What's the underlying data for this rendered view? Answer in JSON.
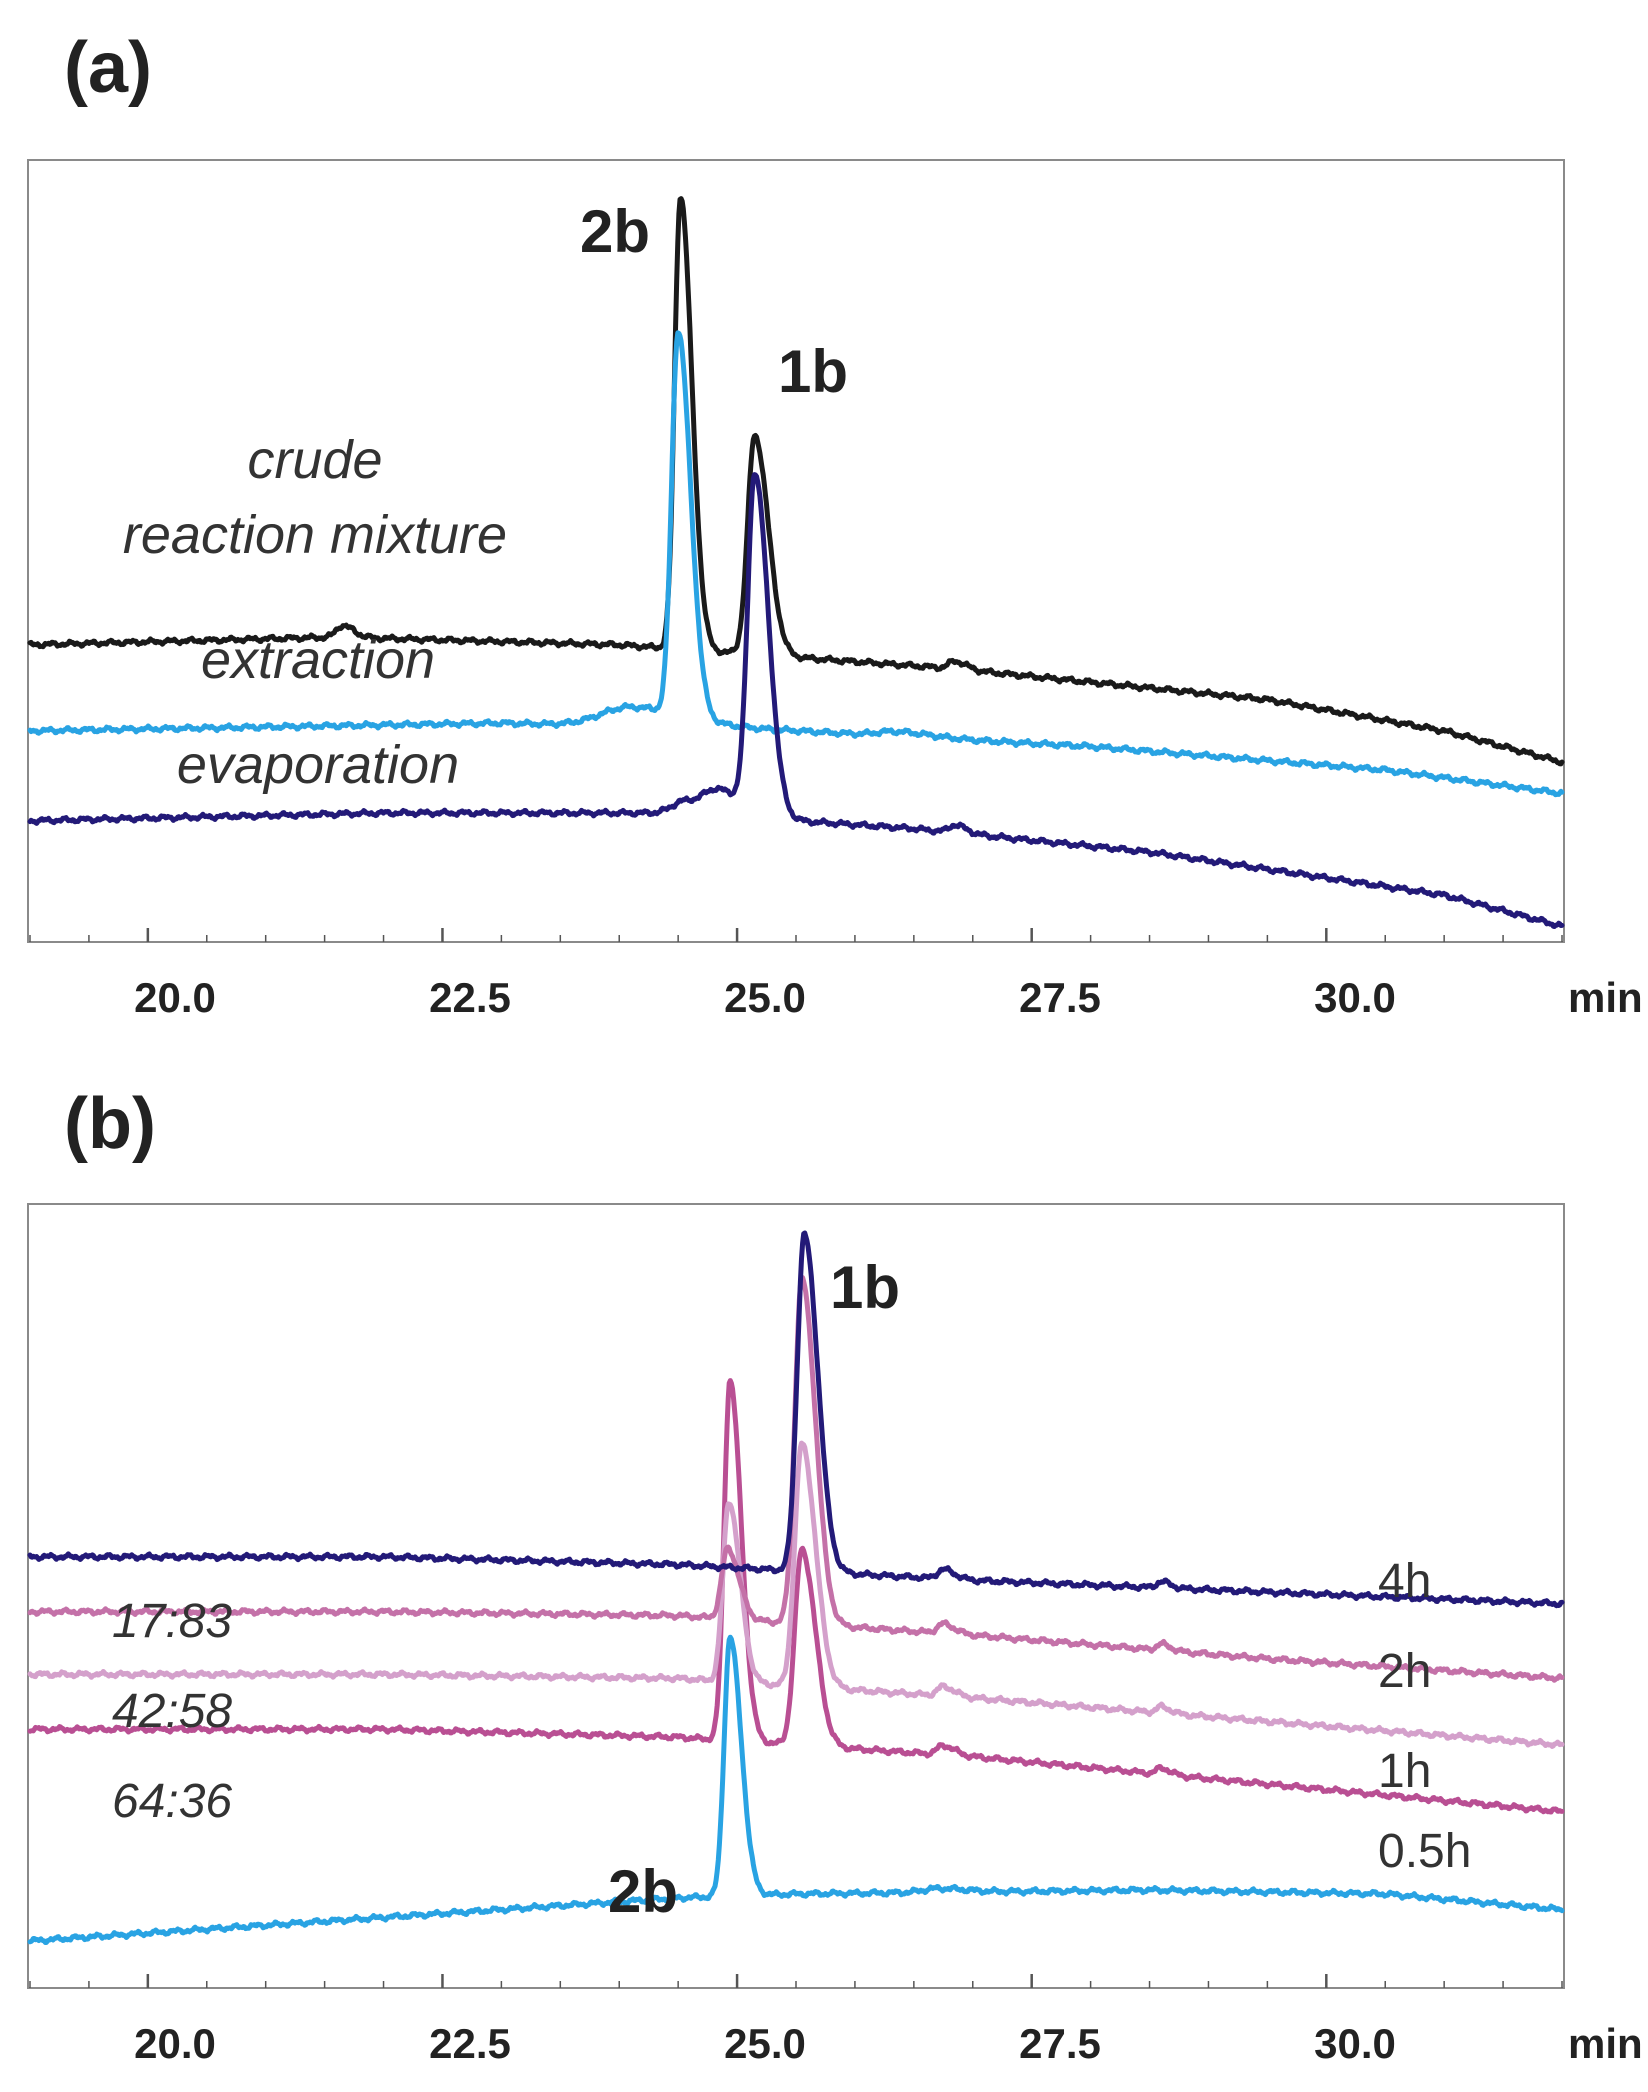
{
  "chart_data": [
    {
      "type": "line",
      "panel_label": "(a)",
      "xlabel": "min",
      "xlim": [
        19.0,
        32.0
      ],
      "x_ticks": [
        "20.0",
        "22.5",
        "25.0",
        "27.5",
        "30.0"
      ],
      "grid": false,
      "peak_labels": [
        {
          "text": "2b",
          "x": 24.5
        },
        {
          "text": "1b",
          "x": 25.1
        }
      ],
      "series": [
        {
          "name": "crude reaction mixture",
          "label_lines": [
            "crude",
            "reaction mixture"
          ],
          "color": "#1a1a1a",
          "baseline": [
            [
              19.0,
              38
            ],
            [
              21.6,
              39
            ],
            [
              24.0,
              38
            ],
            [
              26.8,
              35
            ],
            [
              29.5,
              31
            ],
            [
              31.0,
              27
            ],
            [
              32.0,
              23
            ]
          ],
          "peaks": [
            {
              "x": 24.52,
              "height": 58,
              "width": 0.05
            },
            {
              "x": 25.15,
              "height": 28,
              "width": 0.06
            },
            {
              "x": 21.65,
              "height": 1.5,
              "width": 0.05
            },
            {
              "x": 26.85,
              "height": 1.0,
              "width": 0.05
            }
          ]
        },
        {
          "name": "extraction",
          "label_lines": [
            "extraction"
          ],
          "color": "#29a3e3",
          "baseline": [
            [
              19.0,
              27
            ],
            [
              23.0,
              28
            ],
            [
              25.5,
              27
            ],
            [
              28.0,
              25
            ],
            [
              30.5,
              22
            ],
            [
              32.0,
              19
            ]
          ],
          "peaks": [
            {
              "x": 24.5,
              "height": 49,
              "width": 0.055
            },
            {
              "x": 24.1,
              "height": 2.5,
              "width": 0.25
            },
            {
              "x": 26.35,
              "height": 0.6,
              "width": 0.15
            }
          ]
        },
        {
          "name": "evaporation",
          "label_lines": [
            "evaporation"
          ],
          "color": "#231a78",
          "baseline": [
            [
              19.0,
              15.5
            ],
            [
              22.0,
              16.5
            ],
            [
              24.5,
              16.5
            ],
            [
              26.5,
              14.5
            ],
            [
              28.5,
              11.5
            ],
            [
              31.0,
              6
            ],
            [
              32.0,
              2
            ]
          ],
          "peaks": [
            {
              "x": 25.15,
              "height": 43,
              "width": 0.06
            },
            {
              "x": 24.85,
              "height": 3,
              "width": 0.12
            },
            {
              "x": 24.55,
              "height": 1.5,
              "width": 0.1
            },
            {
              "x": 26.85,
              "height": 1.0,
              "width": 0.05
            }
          ]
        }
      ]
    },
    {
      "type": "line",
      "panel_label": "(b)",
      "xlabel": "min",
      "xlim": [
        19.0,
        32.0
      ],
      "x_ticks": [
        "20.0",
        "22.5",
        "25.0",
        "27.5",
        "30.0"
      ],
      "grid": false,
      "peak_labels": [
        {
          "text": "1b",
          "x": 25.6
        },
        {
          "text": "2b",
          "x": 24.9
        }
      ],
      "series": [
        {
          "name": "4h",
          "time_label": "4h",
          "ratio_label": "",
          "color": "#231a78",
          "baseline": [
            [
              19.0,
              55
            ],
            [
              22.0,
              55
            ],
            [
              24.5,
              54
            ],
            [
              27.0,
              52
            ],
            [
              29.5,
              50.5
            ],
            [
              32.0,
              49
            ]
          ],
          "peaks": [
            {
              "x": 25.57,
              "height": 43,
              "width": 0.06
            },
            {
              "x": 26.75,
              "height": 1.2,
              "width": 0.05
            },
            {
              "x": 28.6,
              "height": 0.8,
              "width": 0.04
            }
          ]
        },
        {
          "name": "2h",
          "time_label": "2h",
          "ratio_label": "17:83",
          "color": "#c471a8",
          "baseline": [
            [
              19.0,
              48
            ],
            [
              22.0,
              48
            ],
            [
              24.5,
              47.5
            ],
            [
              27.0,
              45
            ],
            [
              29.5,
              42
            ],
            [
              32.0,
              39.5
            ]
          ],
          "peaks": [
            {
              "x": 24.92,
              "height": 9,
              "width": 0.05
            },
            {
              "x": 25.55,
              "height": 44,
              "width": 0.06
            },
            {
              "x": 26.75,
              "height": 1.2,
              "width": 0.05
            },
            {
              "x": 28.6,
              "height": 0.8,
              "width": 0.04
            }
          ]
        },
        {
          "name": "1h",
          "time_label": "1h",
          "ratio_label": "42:58",
          "color": "#d4a0cb",
          "baseline": [
            [
              19.0,
              40
            ],
            [
              22.0,
              40
            ],
            [
              24.5,
              39.5
            ],
            [
              27.0,
              37
            ],
            [
              29.5,
              34
            ],
            [
              32.0,
              31
            ]
          ],
          "peaks": [
            {
              "x": 24.93,
              "height": 23,
              "width": 0.05
            },
            {
              "x": 25.55,
              "height": 31,
              "width": 0.06
            },
            {
              "x": 26.75,
              "height": 1.2,
              "width": 0.05
            },
            {
              "x": 28.6,
              "height": 0.8,
              "width": 0.04
            }
          ]
        },
        {
          "name": "0.5h",
          "time_label": "0.5h",
          "ratio_label": "64:36",
          "color": "#b94f93",
          "baseline": [
            [
              19.0,
              33
            ],
            [
              22.0,
              33
            ],
            [
              24.5,
              32
            ],
            [
              27.0,
              29.5
            ],
            [
              29.5,
              26
            ],
            [
              32.0,
              22.5
            ]
          ],
          "peaks": [
            {
              "x": 24.94,
              "height": 46,
              "width": 0.05
            },
            {
              "x": 25.55,
              "height": 25,
              "width": 0.06
            },
            {
              "x": 26.75,
              "height": 1.2,
              "width": 0.05
            },
            {
              "x": 28.6,
              "height": 0.8,
              "width": 0.04
            }
          ]
        },
        {
          "name": "2b reference",
          "time_label": "",
          "ratio_label": "",
          "color": "#29a3e3",
          "baseline": [
            [
              19.0,
              6
            ],
            [
              22.0,
              9
            ],
            [
              24.5,
              11.5
            ],
            [
              25.5,
              12
            ],
            [
              28.5,
              12.5
            ],
            [
              30.5,
              12
            ],
            [
              32.0,
              10
            ]
          ],
          "peaks": [
            {
              "x": 24.94,
              "height": 33,
              "width": 0.05
            },
            {
              "x": 26.7,
              "height": 0.5,
              "width": 0.12
            }
          ]
        }
      ]
    }
  ]
}
